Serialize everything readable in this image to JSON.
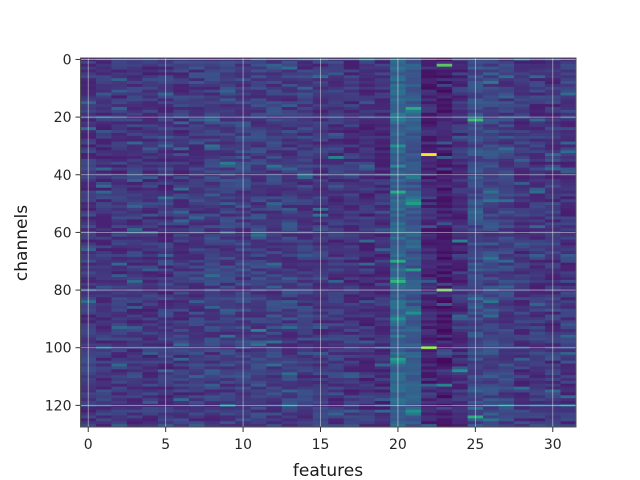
{
  "chart_data": {
    "type": "heatmap",
    "title": "",
    "xlabel": "features",
    "ylabel": "channels",
    "x_range": [
      -0.5,
      31.5
    ],
    "y_range": [
      -0.5,
      127.5
    ],
    "y_inverted": true,
    "n_features": 32,
    "n_channels": 128,
    "x_ticks": [
      0,
      5,
      10,
      15,
      20,
      25,
      30
    ],
    "y_ticks": [
      0,
      20,
      40,
      60,
      80,
      100,
      120
    ],
    "grid": true,
    "colormap": "viridis",
    "value_range": [
      0,
      1
    ],
    "feature_profile": {
      "features": [
        0,
        5,
        10,
        15,
        19,
        20,
        21,
        22,
        23,
        24,
        25,
        26,
        27,
        28,
        29,
        31
      ],
      "typical_value": [
        0.17,
        0.17,
        0.2,
        0.18,
        0.15,
        0.32,
        0.28,
        0.12,
        0.1,
        0.15,
        0.24,
        0.22,
        0.2,
        0.17,
        0.17,
        0.17
      ]
    },
    "hotspots": [
      {
        "feature": 23,
        "channel": 2,
        "value": 0.75
      },
      {
        "feature": 21,
        "channel": 17,
        "value": 0.62
      },
      {
        "feature": 25,
        "channel": 21,
        "value": 0.68
      },
      {
        "feature": 22,
        "channel": 33,
        "value": 1.0
      },
      {
        "feature": 16,
        "channel": 34,
        "value": 0.45
      },
      {
        "feature": 20,
        "channel": 30,
        "value": 0.5
      },
      {
        "feature": 20,
        "channel": 46,
        "value": 0.62
      },
      {
        "feature": 21,
        "channel": 50,
        "value": 0.55
      },
      {
        "feature": 24,
        "channel": 63,
        "value": 0.45
      },
      {
        "feature": 20,
        "channel": 70,
        "value": 0.6
      },
      {
        "feature": 21,
        "channel": 73,
        "value": 0.55
      },
      {
        "feature": 20,
        "channel": 77,
        "value": 0.65
      },
      {
        "feature": 23,
        "channel": 80,
        "value": 0.78
      },
      {
        "feature": 21,
        "channel": 88,
        "value": 0.5
      },
      {
        "feature": 22,
        "channel": 100,
        "value": 0.82
      },
      {
        "feature": 20,
        "channel": 104,
        "value": 0.55
      },
      {
        "feature": 24,
        "channel": 108,
        "value": 0.5
      },
      {
        "feature": 23,
        "channel": 113,
        "value": 0.45
      },
      {
        "feature": 21,
        "channel": 122,
        "value": 0.5
      },
      {
        "feature": 25,
        "channel": 124,
        "value": 0.62
      },
      {
        "feature": 11,
        "channel": 94,
        "value": 0.45
      },
      {
        "feature": 9,
        "channel": 36,
        "value": 0.42
      }
    ]
  }
}
